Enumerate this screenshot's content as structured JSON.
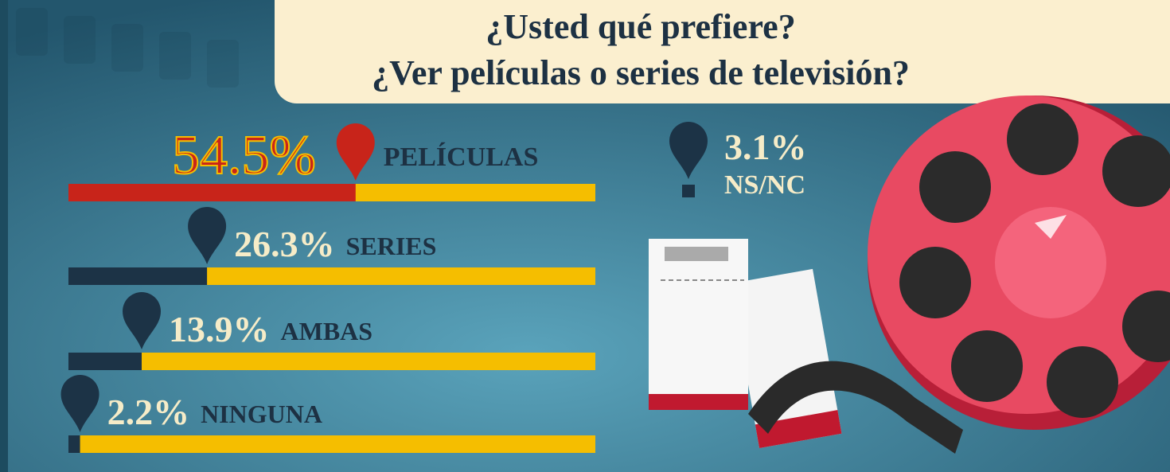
{
  "chart_data": {
    "type": "bar",
    "title": "¿Usted qué prefiere?",
    "subtitle": "¿Ver películas o series de televisión?",
    "categories": [
      "PELÍCULAS",
      "SERIES",
      "AMBAS",
      "NINGUNA"
    ],
    "values": [
      54.5,
      26.3,
      13.9,
      2.2
    ],
    "value_labels": [
      "54.5%",
      "26.3%",
      "13.9%",
      "2.2%"
    ],
    "colors": [
      "#c8241a",
      "#1c3346",
      "#1c3346",
      "#1c3346"
    ],
    "track_color": "#f5be00",
    "xlim": [
      0,
      100
    ],
    "other": {
      "label": "NS/NC",
      "value": 3.1,
      "value_label": "3.1%"
    }
  }
}
